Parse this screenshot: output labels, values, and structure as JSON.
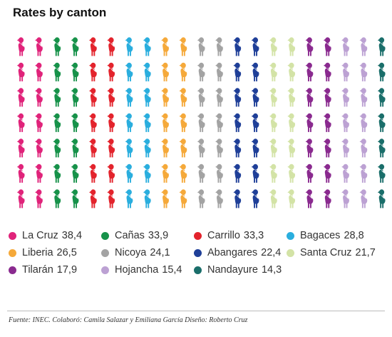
{
  "chart_data": {
    "type": "pictogram",
    "title": "Rates by canton",
    "icons_per_column": 7,
    "series": [
      {
        "name": "La Cruz",
        "value": 38.4,
        "value_label": "38,4",
        "color": "#e0237a"
      },
      {
        "name": "Cañas",
        "value": 33.9,
        "value_label": "33,9",
        "color": "#17924a"
      },
      {
        "name": "Carrillo",
        "value": 33.3,
        "value_label": "33,3",
        "color": "#e3232c"
      },
      {
        "name": "Bagaces",
        "value": 28.8,
        "value_label": "28,8",
        "color": "#2aaede"
      },
      {
        "name": "Liberia",
        "value": 26.5,
        "value_label": "26,5",
        "color": "#f5a93a"
      },
      {
        "name": "Nicoya",
        "value": 24.1,
        "value_label": "24,1",
        "color": "#a3a3a3"
      },
      {
        "name": "Abangares",
        "value": 22.4,
        "value_label": "22,4",
        "color": "#1f3f98"
      },
      {
        "name": "Santa Cruz",
        "value": 21.7,
        "value_label": "21,7",
        "color": "#d3e3a6"
      },
      {
        "name": "Tilarán",
        "value": 17.9,
        "value_label": "17,9",
        "color": "#8a2a8f"
      },
      {
        "name": "Hojancha",
        "value": 15.4,
        "value_label": "15,4",
        "color": "#bca1d3"
      },
      {
        "name": "Nandayure",
        "value": 14.3,
        "value_label": "14,3",
        "color": "#1a6e6a"
      }
    ]
  },
  "source": "Fuente: INEC. Colaboró: Camila Salazar y Emiliana García Diseño: Roberto Cruz"
}
